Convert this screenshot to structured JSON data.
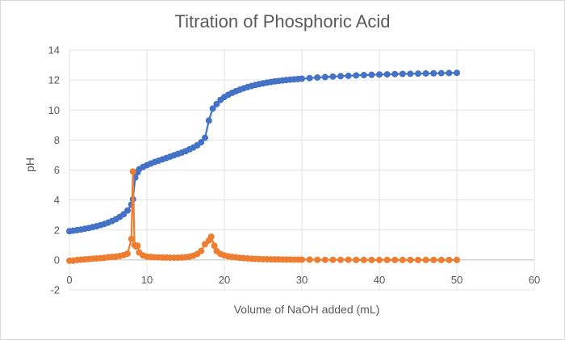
{
  "chart_data": {
    "type": "line",
    "title": "Titration of Phosphoric Acid",
    "xlabel": "Volume of NaOH added (mL)",
    "ylabel": "pH",
    "xlim": [
      0,
      60
    ],
    "ylim": [
      -2,
      14
    ],
    "x_ticks": [
      0,
      10,
      20,
      30,
      40,
      50,
      60
    ],
    "y_ticks": [
      -2,
      0,
      2,
      4,
      6,
      8,
      10,
      12,
      14
    ],
    "grid": true,
    "legend": "none",
    "series": [
      {
        "color": "#4472c4",
        "x": [
          0,
          0.5,
          1,
          1.5,
          2,
          2.5,
          3,
          3.5,
          4,
          4.5,
          5,
          5.5,
          6,
          6.5,
          7,
          7.5,
          8,
          8.2,
          8.5,
          8.8,
          9,
          9.5,
          10,
          10.5,
          11,
          11.5,
          12,
          12.5,
          13,
          13.5,
          14,
          14.5,
          15,
          15.5,
          16,
          16.5,
          17,
          17.5,
          18,
          18.5,
          19,
          19.5,
          20,
          20.5,
          21,
          21.5,
          22,
          22.5,
          23,
          23.5,
          24,
          24.5,
          25,
          25.5,
          26,
          26.5,
          27,
          27.5,
          28,
          28.5,
          29,
          29.5,
          30,
          31,
          32,
          33,
          34,
          35,
          36,
          37,
          38,
          39,
          40,
          41,
          42,
          43,
          44,
          45,
          46,
          47,
          48,
          49,
          50
        ],
        "y": [
          1.92,
          1.95,
          1.99,
          2.03,
          2.08,
          2.13,
          2.19,
          2.25,
          2.32,
          2.4,
          2.49,
          2.6,
          2.72,
          2.87,
          3.05,
          3.3,
          3.7,
          4.05,
          5.5,
          5.85,
          6.05,
          6.2,
          6.32,
          6.43,
          6.53,
          6.62,
          6.71,
          6.8,
          6.89,
          6.98,
          7.07,
          7.16,
          7.26,
          7.38,
          7.5,
          7.65,
          7.85,
          8.15,
          9.3,
          10.1,
          10.4,
          10.68,
          10.87,
          11.02,
          11.15,
          11.26,
          11.36,
          11.45,
          11.53,
          11.6,
          11.67,
          11.73,
          11.78,
          11.83,
          11.87,
          11.91,
          11.94,
          11.97,
          12.0,
          12.03,
          12.05,
          12.07,
          12.09,
          12.13,
          12.17,
          12.2,
          12.23,
          12.26,
          12.28,
          12.31,
          12.33,
          12.35,
          12.37,
          12.38,
          12.4,
          12.41,
          12.42,
          12.43,
          12.44,
          12.45,
          12.46,
          12.47,
          12.48
        ]
      },
      {
        "color": "#ed7d31",
        "x": [
          0,
          0.5,
          1,
          1.5,
          2,
          2.5,
          3,
          3.5,
          4,
          4.5,
          5,
          5.5,
          6,
          6.5,
          7,
          7.5,
          8,
          8.2,
          8.4,
          8.6,
          8.8,
          9,
          9.5,
          10,
          10.5,
          11,
          11.5,
          12,
          12.5,
          13,
          13.5,
          14,
          14.5,
          15,
          15.5,
          16,
          16.5,
          17,
          17.5,
          18,
          18.3,
          18.7,
          19,
          19.5,
          20,
          20.5,
          21,
          21.5,
          22,
          22.5,
          23,
          23.5,
          24,
          24.5,
          25,
          25.5,
          26,
          26.5,
          27,
          27.5,
          28,
          28.5,
          29,
          29.5,
          30,
          31,
          32,
          33,
          34,
          35,
          36,
          37,
          38,
          39,
          40,
          41,
          42,
          43,
          44,
          45,
          46,
          47,
          48,
          49,
          50
        ],
        "y": [
          -0.05,
          -0.05,
          0.0,
          0.02,
          0.04,
          0.06,
          0.08,
          0.1,
          0.12,
          0.14,
          0.18,
          0.2,
          0.22,
          0.26,
          0.32,
          0.42,
          1.4,
          5.9,
          1.0,
          0.9,
          0.95,
          0.5,
          0.3,
          0.22,
          0.2,
          0.18,
          0.17,
          0.16,
          0.16,
          0.15,
          0.15,
          0.15,
          0.16,
          0.18,
          0.22,
          0.28,
          0.4,
          0.6,
          1.05,
          1.3,
          1.55,
          0.95,
          0.6,
          0.4,
          0.3,
          0.24,
          0.2,
          0.17,
          0.14,
          0.12,
          0.1,
          0.08,
          0.07,
          0.06,
          0.05,
          0.05,
          0.04,
          0.04,
          0.04,
          0.03,
          0.03,
          0.03,
          0.02,
          0.02,
          0.02,
          0.02,
          0.01,
          0.01,
          0.01,
          0.01,
          0.01,
          0.0,
          0.0,
          0.0,
          0.0,
          0.0,
          0.0,
          0.0,
          0.0,
          0.0,
          0.0,
          0.0,
          0.0,
          0.0,
          0.0
        ]
      }
    ]
  }
}
